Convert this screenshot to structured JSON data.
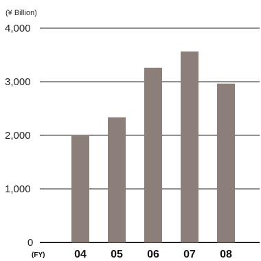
{
  "chart_data": {
    "type": "bar",
    "ylabel": "(¥ Billion)",
    "xlabel": "(FY)",
    "categories": [
      "04",
      "05",
      "06",
      "07",
      "08"
    ],
    "values": [
      2010,
      2335,
      3260,
      3565,
      2965
    ],
    "ylim": [
      0,
      4000
    ],
    "yticks": [
      0,
      1000,
      2000,
      3000,
      4000
    ],
    "ytick_labels": [
      "0",
      "1,000",
      "2,000",
      "3,000",
      "4,000"
    ],
    "grid": true,
    "bar_color": "#8c7f7a",
    "grid_color": "#222222"
  }
}
